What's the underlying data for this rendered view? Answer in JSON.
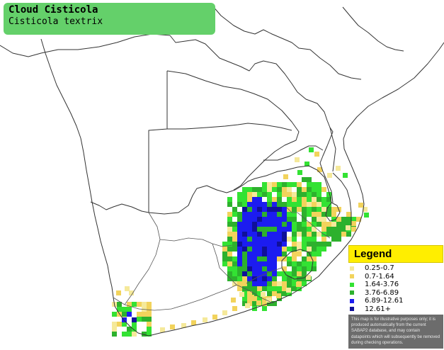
{
  "species": {
    "common_name": "Cloud Cisticola",
    "scientific_name": "Cisticola textrix"
  },
  "legend": {
    "title": "Legend",
    "items": [
      {
        "label": "0.25-0.7",
        "color": "#f5e99a"
      },
      {
        "label": "0.7-1.64",
        "color": "#f2d35c"
      },
      {
        "label": "1.64-3.76",
        "color": "#33e233"
      },
      {
        "label": "3.76-6.89",
        "color": "#2db12d"
      },
      {
        "label": "6.89-12.61",
        "color": "#1c1cf0"
      },
      {
        "label": "12.61+",
        "color": "#101099"
      }
    ],
    "disclaimer": "This map is for illustrative purposes only; it is produced automatically from the current SABAP2 database, and may contain datapoints which will subsequently be removed during checking operations."
  },
  "colors": {
    "title_bg": "#64d06a",
    "legend_header": "#ffee00",
    "border_line": "#333333",
    "background": "#ffffff"
  }
}
